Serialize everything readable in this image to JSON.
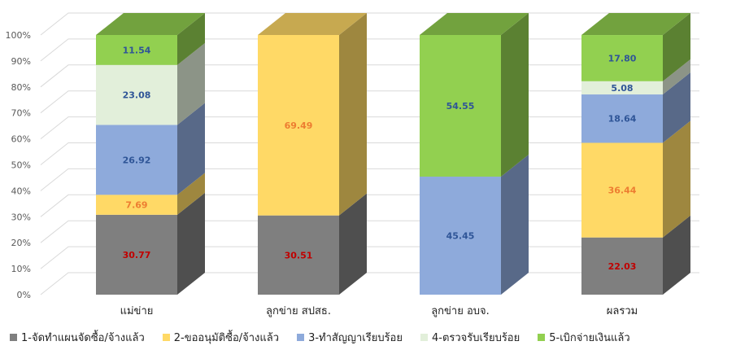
{
  "chart_data": {
    "type": "bar",
    "stacked": true,
    "three_d": true,
    "categories": [
      "แม่ข่าย",
      "ลูกข่าย สปสธ.",
      "ลูกข่าย อบจ.",
      "ผลรวม"
    ],
    "y_ticks": [
      "0%",
      "10%",
      "20%",
      "30%",
      "40%",
      "50%",
      "60%",
      "70%",
      "80%",
      "90%",
      "100%"
    ],
    "ylim": [
      0,
      100
    ],
    "legend_position": "bottom",
    "series": [
      {
        "name": "1-จัดทำแผนจัดซื้อ/จ้างแล้ว",
        "color": "#7f7f7f",
        "label_color": "#c00000",
        "values": [
          30.77,
          30.51,
          null,
          22.03
        ],
        "labels": [
          "30.77",
          "30.51",
          "",
          "22.03"
        ]
      },
      {
        "name": "2-ขออนุมัติซื้อ/จ้างแล้ว",
        "color": "#ffd966",
        "label_color": "#ed7d31",
        "values": [
          7.69,
          69.49,
          null,
          36.44
        ],
        "labels": [
          "7.69",
          "69.49",
          "",
          "36.44"
        ]
      },
      {
        "name": "3-ทำสัญญาเรียบร้อย",
        "color": "#8eaadb",
        "label_color": "#2f5597",
        "values": [
          26.92,
          null,
          45.45,
          18.64
        ],
        "labels": [
          "26.92",
          "",
          "45.45",
          "18.64"
        ]
      },
      {
        "name": "4-ตรวจรับเรียบร้อย",
        "color": "#e2efda",
        "label_color": "#2f5597",
        "values": [
          23.08,
          null,
          null,
          5.08
        ],
        "labels": [
          "23.08",
          "",
          "",
          "5.08"
        ]
      },
      {
        "name": "5-เบิกจ่ายเงินแล้ว",
        "color": "#92d050",
        "label_color": "#2f5597",
        "values": [
          11.54,
          null,
          54.55,
          17.8
        ],
        "labels": [
          "11.54",
          "",
          "54.55",
          "17.80"
        ]
      }
    ]
  }
}
